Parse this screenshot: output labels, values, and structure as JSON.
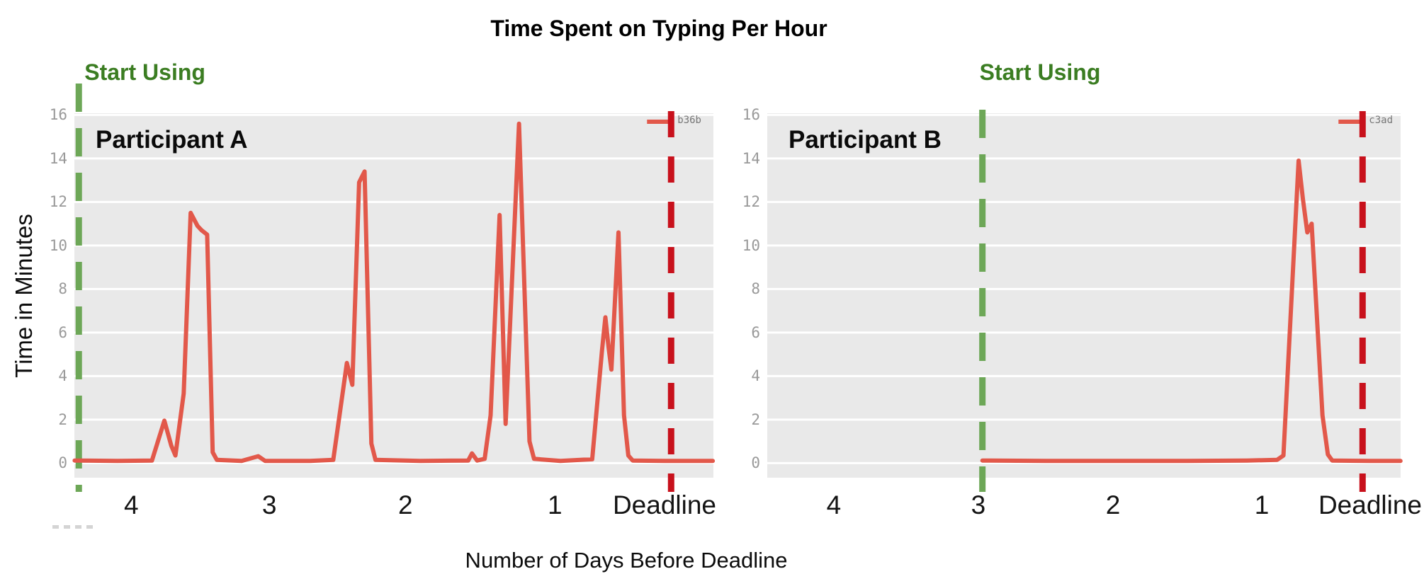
{
  "title": "Time Spent on Typing Per Hour",
  "x_axis_title": "Number of Days Before Deadline",
  "y_axis_title": "Time in Minutes",
  "palette": {
    "series_red": "#e2584a",
    "start_line_green": "#6da757",
    "start_text_green": "#3b7d22",
    "deadline_red": "#c8111c",
    "plot_bg": "#e9e9e9",
    "grid_white": "#ffffff",
    "ytick_gray": "#999999",
    "xtick_dark": "#141414"
  },
  "chart_data": [
    {
      "type": "line",
      "participant": "Participant A",
      "legend": "b36b",
      "ylim": [
        0,
        16
      ],
      "yticks": [
        0,
        2,
        4,
        6,
        8,
        10,
        12,
        14,
        16
      ],
      "grid": true,
      "legend_position": "top-right",
      "xticks": [
        {
          "label": "4",
          "day": 4,
          "pos": 0.089
        },
        {
          "label": "3",
          "day": 3,
          "pos": 0.305
        },
        {
          "label": "2",
          "day": 2,
          "pos": 0.518
        },
        {
          "label": "1",
          "day": 1,
          "pos": 0.752
        },
        {
          "label": "Deadline",
          "day": 0,
          "pos": 0.9235
        }
      ],
      "annotations": {
        "start": {
          "label": "Start Using",
          "day": 4.38
        },
        "deadline": {
          "day": -0.06
        }
      },
      "series": [
        {
          "name": "b36b",
          "points_units": "[days_before_deadline, minutes]",
          "points": [
            [
              4.41,
              0.12
            ],
            [
              4.1,
              0.1
            ],
            [
              3.85,
              0.12
            ],
            [
              3.76,
              1.95
            ],
            [
              3.71,
              0.8
            ],
            [
              3.68,
              0.35
            ],
            [
              3.62,
              3.2
            ],
            [
              3.57,
              11.5
            ],
            [
              3.52,
              10.9
            ],
            [
              3.49,
              10.7
            ],
            [
              3.45,
              10.5
            ],
            [
              3.41,
              0.5
            ],
            [
              3.38,
              0.15
            ],
            [
              3.2,
              0.1
            ],
            [
              3.08,
              0.32
            ],
            [
              3.03,
              0.1
            ],
            [
              2.7,
              0.1
            ],
            [
              2.53,
              0.15
            ],
            [
              2.43,
              4.6
            ],
            [
              2.39,
              3.6
            ],
            [
              2.34,
              12.9
            ],
            [
              2.3,
              13.4
            ],
            [
              2.25,
              0.9
            ],
            [
              2.22,
              0.15
            ],
            [
              1.9,
              0.1
            ],
            [
              1.58,
              0.12
            ],
            [
              1.555,
              0.45
            ],
            [
              1.52,
              0.12
            ],
            [
              1.47,
              0.2
            ],
            [
              1.43,
              2.2
            ],
            [
              1.37,
              11.4
            ],
            [
              1.33,
              1.8
            ],
            [
              1.24,
              15.6
            ],
            [
              1.17,
              1.0
            ],
            [
              1.14,
              0.2
            ],
            [
              0.95,
              0.1
            ],
            [
              0.66,
              0.18
            ],
            [
              0.57,
              5.2
            ],
            [
              0.54,
              6.7
            ],
            [
              0.51,
              5.3
            ],
            [
              0.485,
              4.3
            ],
            [
              0.42,
              10.6
            ],
            [
              0.37,
              2.2
            ],
            [
              0.33,
              0.35
            ],
            [
              0.29,
              0.12
            ],
            [
              0.0,
              0.1
            ],
            [
              -0.44,
              0.1
            ]
          ]
        }
      ]
    },
    {
      "type": "line",
      "participant": "Participant B",
      "legend": "c3ad",
      "ylim": [
        0,
        16
      ],
      "yticks": [
        0,
        2,
        4,
        6,
        8,
        10,
        12,
        14,
        16
      ],
      "grid": true,
      "legend_position": "top-right",
      "xticks": [
        {
          "label": "4",
          "day": 4,
          "pos": 0.1051
        },
        {
          "label": "3",
          "day": 3,
          "pos": 0.3333
        },
        {
          "label": "2",
          "day": 2,
          "pos": 0.5459
        },
        {
          "label": "1",
          "day": 1,
          "pos": 0.7808
        },
        {
          "label": "Deadline",
          "day": 0,
          "pos": 0.9519
        }
      ],
      "annotations": {
        "start": {
          "label": "Start Using",
          "day": 2.97
        },
        "deadline": {
          "day": 0.07
        }
      },
      "series": [
        {
          "name": "c3ad",
          "points_units": "[days_before_deadline, minutes]",
          "points": [
            [
              2.97,
              0.12
            ],
            [
              2.5,
              0.1
            ],
            [
              2.0,
              0.1
            ],
            [
              1.5,
              0.1
            ],
            [
              1.1,
              0.12
            ],
            [
              0.86,
              0.15
            ],
            [
              0.8,
              0.35
            ],
            [
              0.66,
              13.9
            ],
            [
              0.62,
              12.1
            ],
            [
              0.58,
              10.6
            ],
            [
              0.54,
              11.0
            ],
            [
              0.44,
              2.2
            ],
            [
              0.39,
              0.4
            ],
            [
              0.35,
              0.12
            ],
            [
              0.0,
              0.1
            ],
            [
              -0.28,
              0.1
            ]
          ]
        }
      ]
    }
  ]
}
